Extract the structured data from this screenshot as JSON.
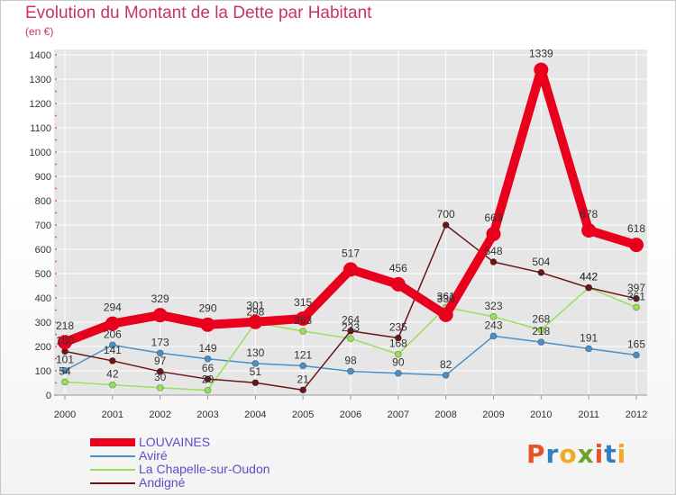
{
  "title": "Evolution du Montant de la Dette par Habitant",
  "unit_label": "(en €)",
  "logo": {
    "text": "Proxiti",
    "letter_colors": [
      "#e8542a",
      "#2f7fc1",
      "#f2a91f",
      "#6aa32a",
      "#e8542a",
      "#2f7fc1",
      "#f2a91f"
    ]
  },
  "chart_data": {
    "type": "line",
    "title": "Evolution du Montant de la Dette par Habitant",
    "ylabel": "(en €)",
    "xlabel": "",
    "x": [
      "2000",
      "2001",
      "2002",
      "2003",
      "2004",
      "2005",
      "2006",
      "2007",
      "2008",
      "2009",
      "2010",
      "2011",
      "2012"
    ],
    "ylim": [
      0,
      1400
    ],
    "yticks": [
      0,
      100,
      200,
      300,
      400,
      500,
      600,
      700,
      800,
      900,
      1000,
      1100,
      1200,
      1300,
      1400
    ],
    "grid": true,
    "legend_position": "bottom-left",
    "series": [
      {
        "name": "LOUVAINES",
        "color": "#e8001c",
        "values": [
          218,
          294,
          329,
          290,
          301,
          315,
          517,
          456,
          330,
          663,
          1339,
          678,
          618
        ],
        "labels_shown": true
      },
      {
        "name": "Aviré",
        "color": "#4a90c8",
        "values": [
          101,
          206,
          173,
          149,
          130,
          121,
          98,
          90,
          82,
          243,
          218,
          191,
          165
        ],
        "labels_shown": true
      },
      {
        "name": "La Chapelle-sur-Oudon",
        "color": "#99e05a",
        "values": [
          54,
          42,
          30,
          20,
          298,
          263,
          233,
          168,
          361,
          323,
          268,
          442,
          361
        ],
        "labels_shown": true
      },
      {
        "name": "Andigné",
        "color": "#6b1616",
        "values": [
          180,
          141,
          97,
          66,
          51,
          21,
          264,
          235,
          700,
          548,
          504,
          442,
          397
        ],
        "labels_shown": true
      }
    ]
  }
}
